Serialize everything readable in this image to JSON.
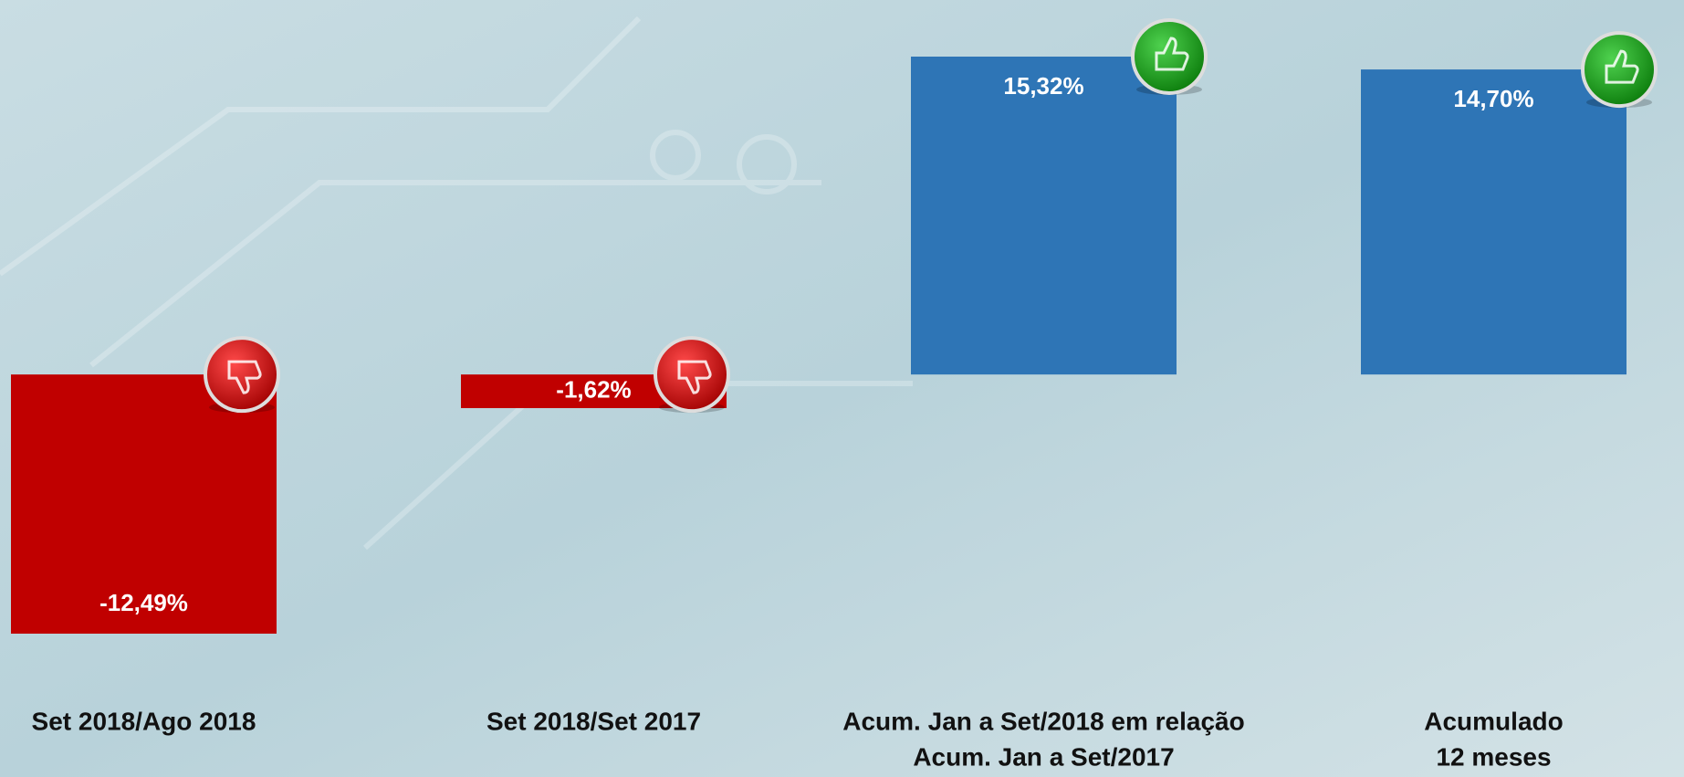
{
  "chart_data": {
    "type": "bar",
    "categories": [
      [
        "Set 2018/Ago 2018"
      ],
      [
        "Set 2018/Set 2017"
      ],
      [
        "Acum. Jan a Set/2018 em relação",
        "Acum. Jan a Set/2017"
      ],
      [
        "Acumulado",
        "12 meses"
      ]
    ],
    "values": [
      -12.49,
      -1.62,
      15.32,
      14.7
    ],
    "value_labels": [
      "-12,49%",
      "-1,62%",
      "15,32%",
      "14,70%"
    ],
    "colors": [
      "#c00000",
      "#c00000",
      "#2e75b6",
      "#2e75b6"
    ]
  }
}
